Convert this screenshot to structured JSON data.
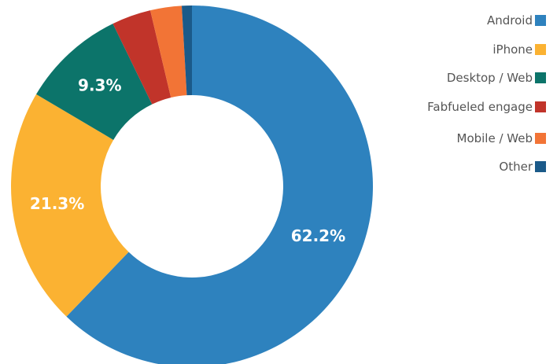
{
  "chart_data": {
    "type": "pie",
    "donut": true,
    "title": "",
    "legend_position": "top-right",
    "series": [
      {
        "name": "Android",
        "value": 62.2,
        "label": "62.2%",
        "color": "#2e82be"
      },
      {
        "name": "iPhone",
        "value": 21.3,
        "label": "21.3%",
        "color": "#fbb232"
      },
      {
        "name": "Desktop / Web",
        "value": 9.3,
        "label": "9.3%",
        "color": "#0c746a"
      },
      {
        "name": "Fabfueled engage",
        "value": 3.5,
        "label": "",
        "color": "#c1342a"
      },
      {
        "name": "Mobile / Web",
        "value": 2.8,
        "label": "",
        "color": "#f27436"
      },
      {
        "name": "Other",
        "value": 0.9,
        "label": "",
        "color": "#1b5a89"
      }
    ]
  }
}
